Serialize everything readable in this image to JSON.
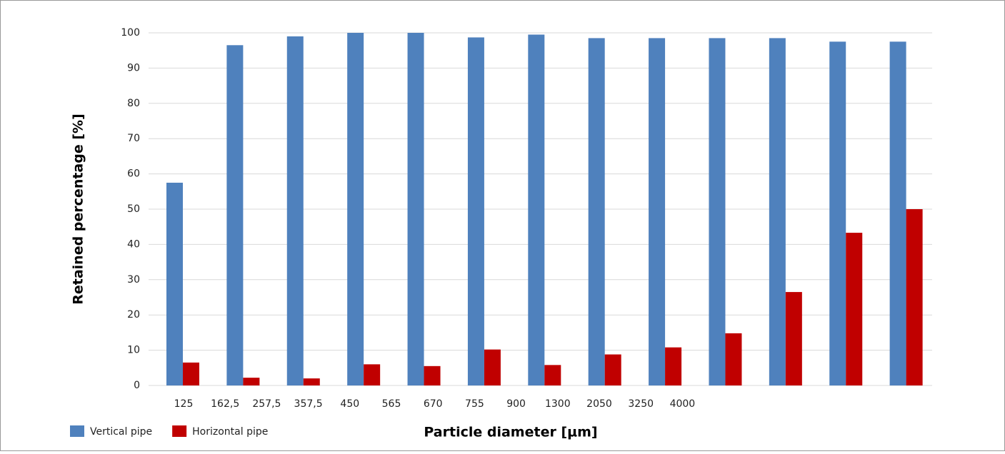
{
  "chart_data": {
    "type": "bar",
    "x_label": "Particle diameter [µm]",
    "y_label": "Retained percentage [%]",
    "categories": [
      "125",
      "162,5",
      "257,5",
      "357,5",
      "450",
      "565",
      "670",
      "755",
      "900",
      "1300",
      "2050",
      "3250",
      "4000"
    ],
    "series": [
      {
        "name": "Vertical pipe",
        "color": "#4f81bd",
        "values": [
          57.5,
          96.5,
          99,
          100,
          100,
          98.7,
          99.5,
          98.5,
          98.5,
          98.5,
          98.5,
          97.5,
          97.5
        ]
      },
      {
        "name": "Horizontal pipe",
        "color": "#c00000",
        "values": [
          6.5,
          2.2,
          2,
          6,
          5.5,
          10.2,
          5.8,
          8.8,
          10.8,
          14.8,
          26.5,
          43.3,
          50
        ]
      }
    ],
    "ylim": [
      0,
      100
    ],
    "yticks": [
      0,
      10,
      20,
      30,
      40,
      50,
      60,
      70,
      80,
      90,
      100
    ],
    "grid": true,
    "legend": "bottom-left"
  }
}
